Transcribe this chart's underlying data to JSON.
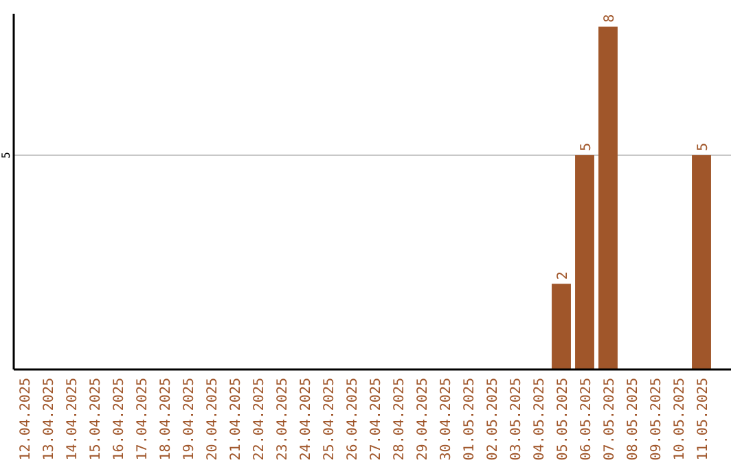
{
  "chart_data": {
    "type": "bar",
    "categories": [
      "12.04.2025",
      "13.04.2025",
      "14.04.2025",
      "15.04.2025",
      "16.04.2025",
      "17.04.2025",
      "18.04.2025",
      "19.04.2025",
      "20.04.2025",
      "21.04.2025",
      "22.04.2025",
      "23.04.2025",
      "24.04.2025",
      "25.04.2025",
      "26.04.2025",
      "27.04.2025",
      "28.04.2025",
      "29.04.2025",
      "30.04.2025",
      "01.05.2025",
      "02.05.2025",
      "03.05.2025",
      "04.05.2025",
      "05.05.2025",
      "06.05.2025",
      "07.05.2025",
      "08.05.2025",
      "09.05.2025",
      "10.05.2025",
      "11.05.2025"
    ],
    "values": [
      null,
      null,
      null,
      null,
      null,
      null,
      null,
      null,
      null,
      null,
      null,
      null,
      null,
      null,
      null,
      null,
      null,
      null,
      null,
      null,
      null,
      null,
      null,
      2,
      5,
      8,
      null,
      null,
      null,
      5
    ],
    "data_labels": true,
    "color": "#a0562a",
    "ylim": [
      0,
      8.3
    ],
    "yticks": [
      5
    ],
    "grid": "y"
  }
}
